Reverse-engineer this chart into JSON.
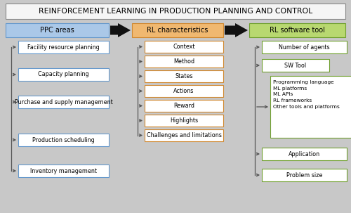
{
  "title": "REINFORCEMENT LEARNING IN PRODUCTION PLANNING AND CONTROL",
  "background_color": "#c8c8c8",
  "title_box_color": "#f5f5f5",
  "title_box_edge": "#888888",
  "col1_header": "PPC areas",
  "col1_header_color": "#aac8e8",
  "col1_header_edge": "#6699cc",
  "col1_items": [
    "Facility resource planning",
    "Capacity planning",
    "Purchase and supply management",
    "Production scheduling",
    "Inventory management"
  ],
  "col1_item_color": "#ffffff",
  "col1_item_edge": "#6699cc",
  "col2_header": "RL characteristics",
  "col2_header_color": "#f0b870",
  "col2_header_edge": "#d08830",
  "col2_items": [
    "Context",
    "Method",
    "States",
    "Actions",
    "Reward",
    "Highlights",
    "Challenges and limitations"
  ],
  "col2_item_color": "#ffffff",
  "col2_item_edge": "#d08830",
  "col3_header": "RL software tool",
  "col3_header_color": "#b8d870",
  "col3_header_edge": "#70a030",
  "col3_items": [
    "Number of agents",
    "SW Tool",
    "Application",
    "Problem size"
  ],
  "col3_item_color": "#ffffff",
  "col3_item_edge": "#70a030",
  "col3_subbox_lines": [
    "Programming language",
    "ML platforms",
    "ML APIs",
    "RL frameworks",
    "Other tools and platforms"
  ],
  "col3_subbox_color": "#ffffff",
  "col3_subbox_edge": "#70a030",
  "arrow_color": "#111111",
  "line_color": "#555555",
  "text_color": "#000000",
  "font_size": 5.8,
  "header_font_size": 7.0,
  "title_font_size": 7.8
}
